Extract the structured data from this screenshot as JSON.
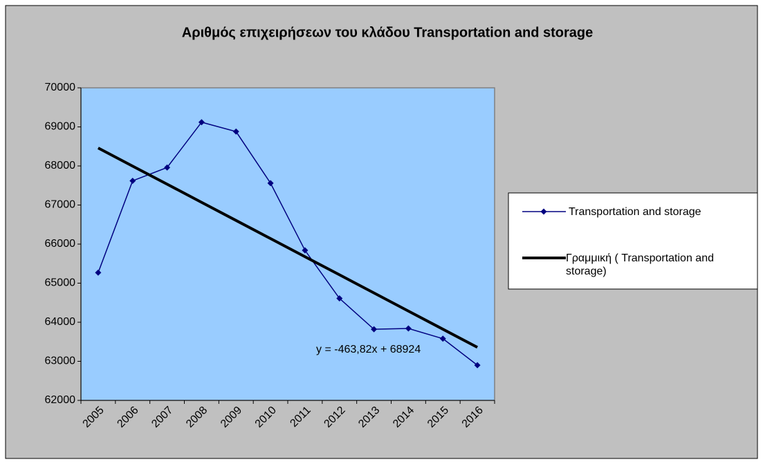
{
  "chart_data": {
    "type": "line",
    "title": "Αριθμός επιχειρήσεων του κλάδου Transportation and storage",
    "categories": [
      "2005",
      "2006",
      "2007",
      "2008",
      "2009",
      "2010",
      "2011",
      "2012",
      "2013",
      "2014",
      "2015",
      "2016"
    ],
    "series": [
      {
        "name": "Transportation and storage",
        "color": "#000080",
        "marker": "diamond",
        "values": [
          65270,
          67620,
          67960,
          69120,
          68880,
          67560,
          65840,
          64610,
          63820,
          63840,
          63580,
          62900
        ]
      },
      {
        "name": "Γραμμική ( Transportation and storage)",
        "color": "#000000",
        "marker": "none",
        "values": [
          68460,
          67996,
          67533,
          67069,
          66605,
          66141,
          65677,
          65214,
          64750,
          64286,
          63822,
          63358
        ]
      }
    ],
    "annotation": "y = -463,82x + 68924",
    "ylim": [
      62000,
      70000
    ],
    "yticks": [
      62000,
      63000,
      64000,
      65000,
      66000,
      67000,
      68000,
      69000,
      70000
    ],
    "grid": false,
    "legend": "right"
  }
}
